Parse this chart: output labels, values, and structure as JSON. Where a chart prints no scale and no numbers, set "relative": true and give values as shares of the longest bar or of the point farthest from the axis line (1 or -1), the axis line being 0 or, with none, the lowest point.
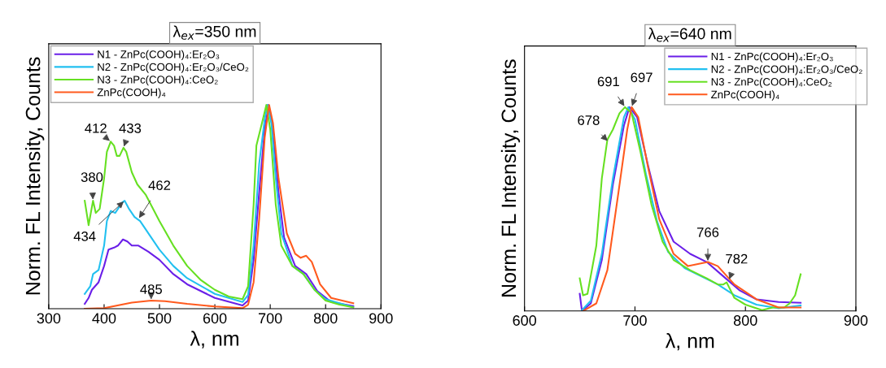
{
  "chart_data": [
    {
      "type": "line",
      "title": "λ$_{ex}$=350 nm",
      "xlabel": "λ, nm",
      "ylabel": "Norm. FL Intensity, Counts",
      "relative": true,
      "xlim": [
        300,
        900
      ],
      "xticks": [
        300,
        400,
        500,
        600,
        700,
        800,
        900
      ],
      "legend": "top left",
      "grid": false,
      "series": [
        {
          "name": "N1 - ZnPc(COOH)₄:Er₂O₃",
          "color": "#6a1fe8",
          "x": [
            365,
            372,
            378,
            390,
            400,
            408,
            418,
            425,
            434,
            442,
            450,
            462,
            480,
            500,
            525,
            550,
            600,
            650,
            660,
            670,
            680,
            690,
            697,
            705,
            715,
            725,
            745,
            765,
            785,
            810,
            850
          ],
          "values": [
            0.024,
            0.053,
            0.093,
            0.13,
            0.21,
            0.29,
            0.3,
            0.31,
            0.34,
            0.33,
            0.31,
            0.31,
            0.28,
            0.24,
            0.17,
            0.12,
            0.053,
            0.016,
            0.04,
            0.24,
            0.57,
            0.88,
            1.0,
            0.88,
            0.57,
            0.35,
            0.21,
            0.17,
            0.087,
            0.033,
            0.013
          ]
        },
        {
          "name": "N2 - ZnPc(COOH)₄:Er₂O₃/CeO₂",
          "color": "#22c0f0",
          "x": [
            365,
            375,
            380,
            390,
            400,
            405,
            412,
            420,
            425,
            432,
            437,
            445,
            455,
            465,
            500,
            525,
            550,
            600,
            650,
            660,
            670,
            680,
            690,
            695,
            702,
            710,
            720,
            740,
            760,
            780,
            800,
            850
          ],
          "values": [
            0.073,
            0.11,
            0.17,
            0.19,
            0.31,
            0.43,
            0.48,
            0.47,
            0.49,
            0.52,
            0.53,
            0.49,
            0.45,
            0.43,
            0.29,
            0.21,
            0.15,
            0.073,
            0.033,
            0.067,
            0.31,
            0.71,
            0.93,
            1.0,
            0.91,
            0.64,
            0.37,
            0.21,
            0.17,
            0.093,
            0.047,
            0.007
          ]
        },
        {
          "name": "N3 - ZnPc(COOH)₄:CeO₂",
          "color": "#66e022",
          "x": [
            365,
            372,
            380,
            385,
            392,
            400,
            405,
            412,
            418,
            423,
            428,
            435,
            440,
            450,
            460,
            475,
            500,
            525,
            550,
            575,
            600,
            625,
            650,
            660,
            670,
            675,
            685,
            693,
            700,
            710,
            720,
            740,
            760,
            780,
            800,
            825,
            850
          ],
          "values": [
            0.53,
            0.41,
            0.53,
            0.47,
            0.49,
            0.64,
            0.77,
            0.82,
            0.8,
            0.75,
            0.75,
            0.79,
            0.77,
            0.67,
            0.61,
            0.56,
            0.43,
            0.31,
            0.21,
            0.14,
            0.093,
            0.06,
            0.047,
            0.11,
            0.51,
            0.8,
            0.91,
            1.0,
            0.88,
            0.51,
            0.31,
            0.21,
            0.17,
            0.093,
            0.04,
            0.02,
            0.007
          ]
        },
        {
          "name": "ZnPc(COOH)₄",
          "color": "#ff5a1e",
          "x": [
            365,
            400,
            450,
            485,
            510,
            550,
            600,
            650,
            660,
            670,
            680,
            690,
            698,
            705,
            715,
            730,
            745,
            755,
            765,
            775,
            790,
            810,
            850
          ],
          "values": [
            0,
            0.003,
            0.03,
            0.04,
            0.037,
            0.024,
            0.011,
            0.003,
            0.02,
            0.13,
            0.44,
            0.84,
            1.0,
            0.91,
            0.64,
            0.37,
            0.27,
            0.25,
            0.26,
            0.23,
            0.12,
            0.053,
            0.027
          ]
        }
      ],
      "annotations": [
        {
          "text": "412",
          "x": 412,
          "y": 0.82
        },
        {
          "text": "433",
          "x": 435,
          "y": 0.79
        },
        {
          "text": "380",
          "x": 380,
          "y": 0.53
        },
        {
          "text": "434",
          "x": 437,
          "y": 0.53
        },
        {
          "text": "462",
          "x": 462,
          "y": 0.44
        },
        {
          "text": "485",
          "x": 485,
          "y": 0.04
        }
      ]
    },
    {
      "type": "line",
      "title": "λ$_{ex}$=640 nm",
      "xlabel": "λ, nm",
      "ylabel": "Norm. FL Intensity, Counts",
      "relative": true,
      "xlim": [
        600,
        900
      ],
      "xticks": [
        600,
        700,
        800,
        900
      ],
      "legend": "top right",
      "grid": false,
      "series": [
        {
          "name": "N1 - ZnPc(COOH)₄:Er₂O₃",
          "color": "#6a1fe8",
          "x": [
            650,
            652,
            660,
            670,
            680,
            690,
            695,
            702,
            712,
            722,
            735,
            750,
            765,
            780,
            795,
            810,
            830,
            850
          ],
          "values": [
            0.084,
            0,
            0.037,
            0.25,
            0.62,
            0.91,
            1.0,
            0.95,
            0.71,
            0.49,
            0.34,
            0.28,
            0.24,
            0.17,
            0.1,
            0.057,
            0.044,
            0.04
          ]
        },
        {
          "name": "N2 - ZnPc(COOH)₄:Er₂O₃/CeO₂",
          "color": "#22c0f0",
          "x": [
            652,
            660,
            670,
            680,
            690,
            694,
            700,
            710,
            720,
            730,
            745,
            760,
            775,
            790,
            810,
            830,
            850
          ],
          "values": [
            0.004,
            0.05,
            0.28,
            0.65,
            0.95,
            1.0,
            0.94,
            0.67,
            0.44,
            0.29,
            0.21,
            0.17,
            0.13,
            0.077,
            0.031,
            0.013,
            0.027
          ]
        },
        {
          "name": "N3 - ZnPc(COOH)₄:CeO₂",
          "color": "#66e022",
          "x": [
            650,
            653,
            657,
            665,
            670,
            675,
            680,
            686,
            691,
            697,
            705,
            715,
            725,
            735,
            750,
            765,
            775,
            780,
            783,
            790,
            800,
            815,
            825,
            835,
            840,
            845,
            850
          ],
          "values": [
            0.16,
            0.077,
            0.084,
            0.32,
            0.65,
            0.84,
            0.89,
            0.97,
            1.0,
            0.97,
            0.78,
            0.52,
            0.34,
            0.25,
            0.2,
            0.16,
            0.13,
            0.13,
            0.14,
            0.064,
            0.031,
            0.004,
            0.017,
            0.017,
            0.037,
            0.077,
            0.18
          ]
        },
        {
          "name": "ZnPc(COOH)₄",
          "color": "#ff5a1e",
          "x": [
            653,
            665,
            675,
            685,
            693,
            697,
            703,
            712,
            722,
            735,
            748,
            757,
            766,
            775,
            790,
            810,
            830,
            850
          ],
          "values": [
            0,
            0.037,
            0.2,
            0.58,
            0.89,
            1.0,
            0.95,
            0.7,
            0.45,
            0.28,
            0.22,
            0.23,
            0.24,
            0.22,
            0.13,
            0.057,
            0.017,
            0.017
          ]
        }
      ],
      "annotations": [
        {
          "text": "691",
          "x": 691,
          "y": 1.0
        },
        {
          "text": "697",
          "x": 697,
          "y": 1.0
        },
        {
          "text": "678",
          "x": 676,
          "y": 0.83
        },
        {
          "text": "766",
          "x": 766,
          "y": 0.24
        },
        {
          "text": "782",
          "x": 785,
          "y": 0.15
        }
      ]
    }
  ]
}
